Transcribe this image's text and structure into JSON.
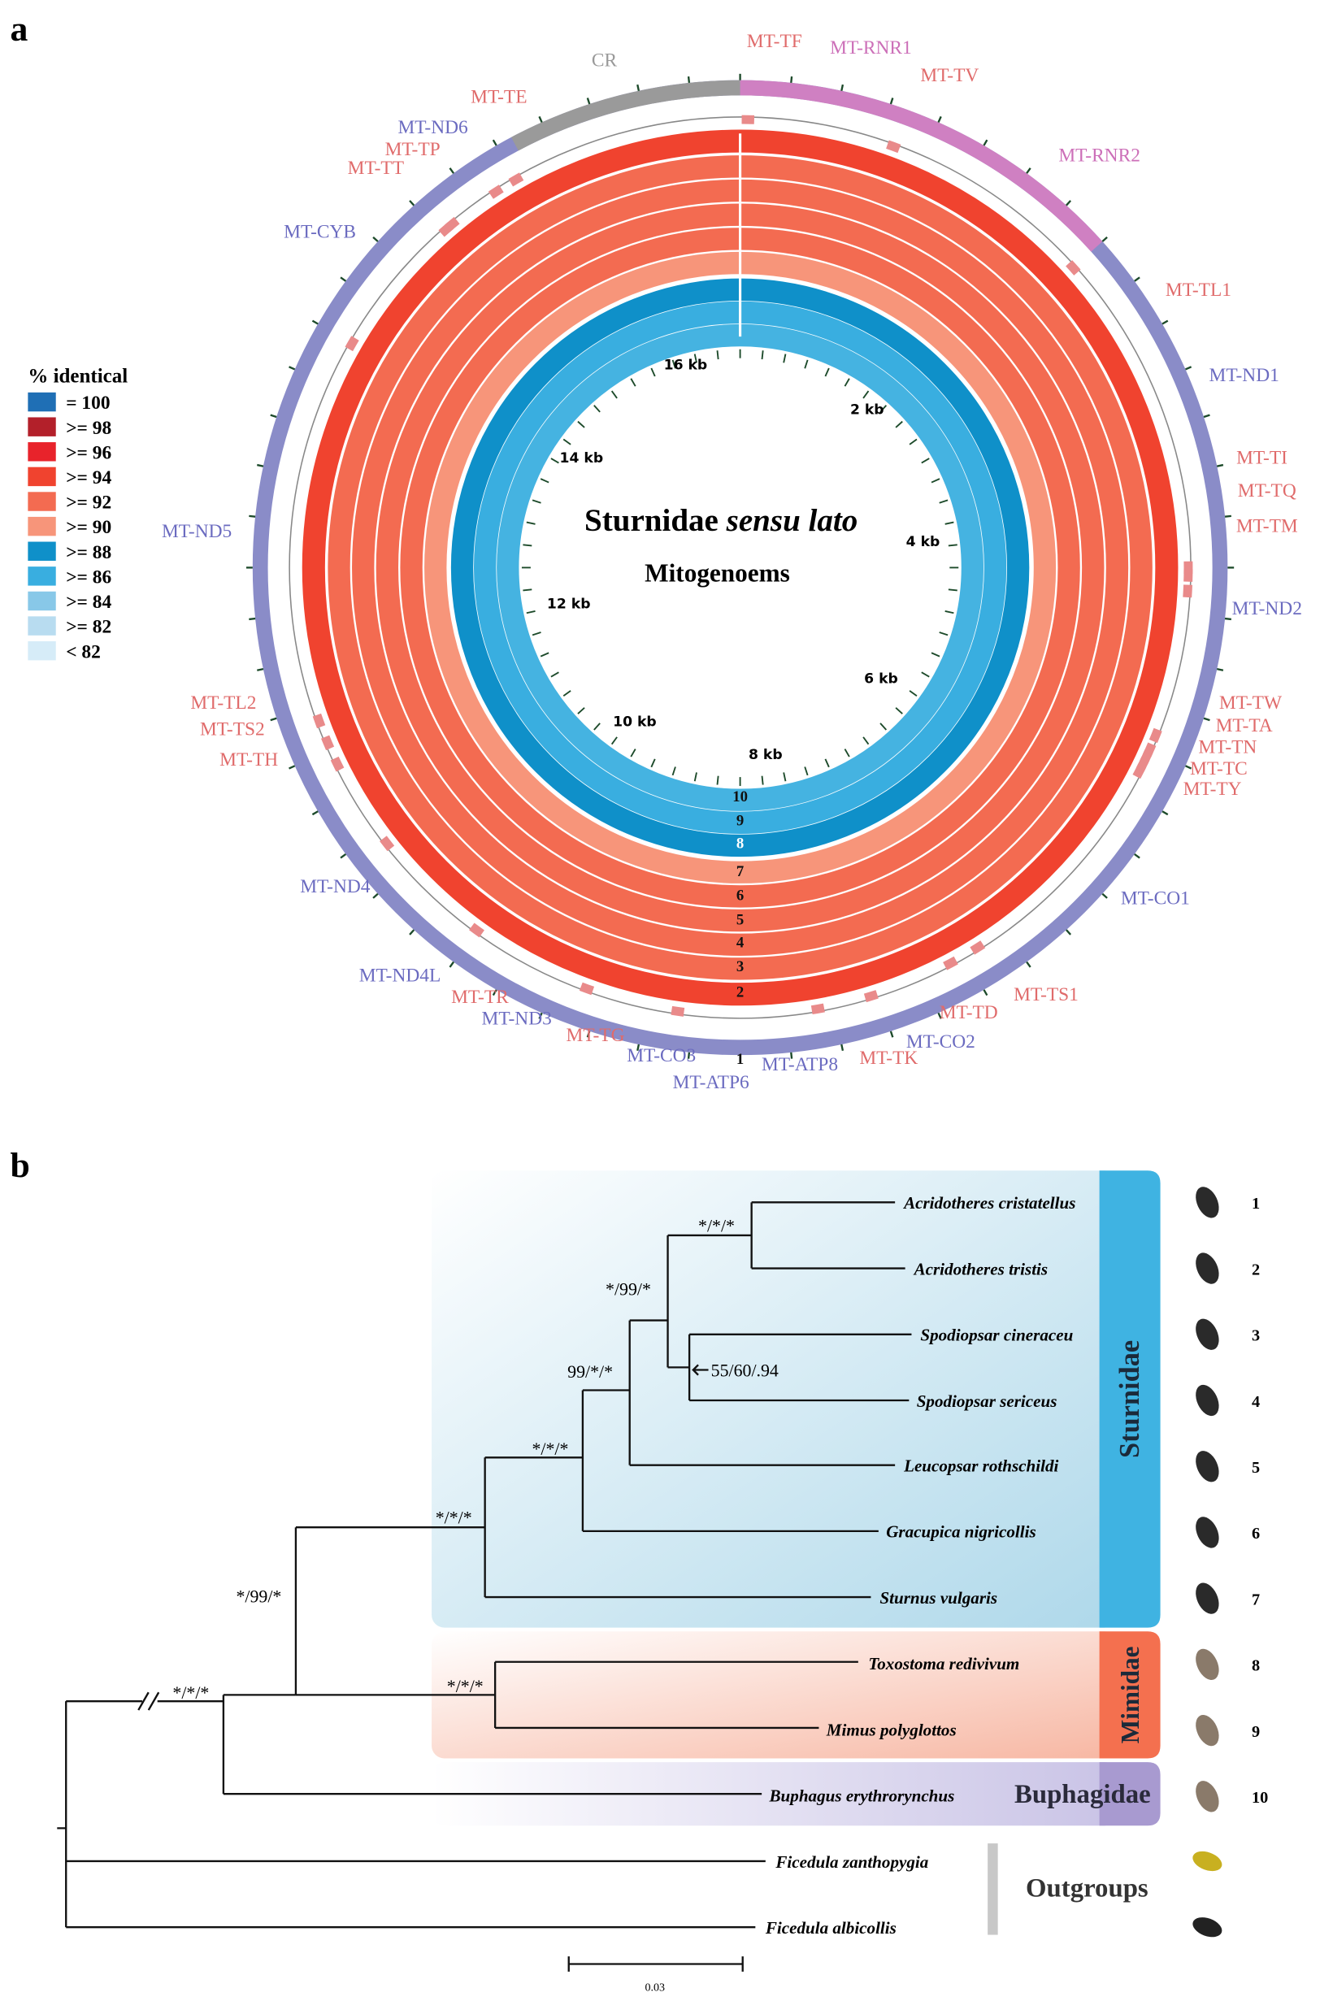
{
  "panel_a": {
    "label": "a",
    "legend": {
      "title": "% identical",
      "items": [
        {
          "label": "= 100",
          "color": "#1f6fb5"
        },
        {
          "label": ">= 98",
          "color": "#b3202a"
        },
        {
          "label": ">= 96",
          "color": "#e8232b"
        },
        {
          "label": ">= 94",
          "color": "#f0432f"
        },
        {
          "label": ">= 92",
          "color": "#f36b51"
        },
        {
          "label": ">= 90",
          "color": "#f7957a"
        },
        {
          "label": ">= 88",
          "color": "#0f90c9"
        },
        {
          "label": ">= 86",
          "color": "#39aee0"
        },
        {
          "label": ">= 84",
          "color": "#88c8e8"
        },
        {
          "label": ">= 82",
          "color": "#b8dcf0"
        },
        {
          "label": "< 82",
          "color": "#d6ecf8"
        }
      ]
    },
    "center_title": {
      "main": "Sturnidae",
      "italic": "sensu lato"
    },
    "center_subtitle": "Mitogenoems",
    "kb_labels": [
      "2 kb",
      "4 kb",
      "6 kb",
      "8 kb",
      "10 kb",
      "12 kb",
      "14 kb",
      "16 kb"
    ],
    "rings": [
      {
        "label": "1",
        "color": "#8a8cc8"
      },
      {
        "label": "2",
        "color": "#f0432f"
      },
      {
        "label": "3",
        "color": "#f36b51"
      },
      {
        "label": "4",
        "color": "#f36b51"
      },
      {
        "label": "5",
        "color": "#f36b51"
      },
      {
        "label": "6",
        "color": "#f36b51"
      },
      {
        "label": "7",
        "color": "#f7957a"
      },
      {
        "label": "8",
        "color": "#0f90c9"
      },
      {
        "label": "9",
        "color": "#39aee0"
      },
      {
        "label": "10",
        "color": "#45b3e1"
      }
    ],
    "genes": [
      {
        "name": "CR",
        "color": "#999999"
      },
      {
        "name": "MT-TF",
        "color": "#e06b6b"
      },
      {
        "name": "MT-RNR1",
        "color": "#cc6fb8"
      },
      {
        "name": "MT-TV",
        "color": "#e06b6b"
      },
      {
        "name": "MT-RNR2",
        "color": "#cc6fb8"
      },
      {
        "name": "MT-TL1",
        "color": "#e06b6b"
      },
      {
        "name": "MT-ND1",
        "color": "#6b6bc0"
      },
      {
        "name": "MT-TI",
        "color": "#e06b6b"
      },
      {
        "name": "MT-TQ",
        "color": "#e06b6b"
      },
      {
        "name": "MT-TM",
        "color": "#e06b6b"
      },
      {
        "name": "MT-ND2",
        "color": "#6b6bc0"
      },
      {
        "name": "MT-TW",
        "color": "#e06b6b"
      },
      {
        "name": "MT-TA",
        "color": "#e06b6b"
      },
      {
        "name": "MT-TN",
        "color": "#e06b6b"
      },
      {
        "name": "MT-TC",
        "color": "#e06b6b"
      },
      {
        "name": "MT-TY",
        "color": "#e06b6b"
      },
      {
        "name": "MT-CO1",
        "color": "#6b6bc0"
      },
      {
        "name": "MT-TS1",
        "color": "#e06b6b"
      },
      {
        "name": "MT-TD",
        "color": "#e06b6b"
      },
      {
        "name": "MT-CO2",
        "color": "#6b6bc0"
      },
      {
        "name": "MT-TK",
        "color": "#e06b6b"
      },
      {
        "name": "MT-ATP8",
        "color": "#6b6bc0"
      },
      {
        "name": "MT-ATP6",
        "color": "#6b6bc0"
      },
      {
        "name": "MT-CO3",
        "color": "#6b6bc0"
      },
      {
        "name": "MT-TG",
        "color": "#e06b6b"
      },
      {
        "name": "MT-ND3",
        "color": "#6b6bc0"
      },
      {
        "name": "MT-TR",
        "color": "#e06b6b"
      },
      {
        "name": "MT-ND4L",
        "color": "#6b6bc0"
      },
      {
        "name": "MT-ND4",
        "color": "#6b6bc0"
      },
      {
        "name": "MT-TH",
        "color": "#e06b6b"
      },
      {
        "name": "MT-TS2",
        "color": "#e06b6b"
      },
      {
        "name": "MT-TL2",
        "color": "#e06b6b"
      },
      {
        "name": "MT-ND5",
        "color": "#6b6bc0"
      },
      {
        "name": "MT-CYB",
        "color": "#6b6bc0"
      },
      {
        "name": "MT-TT",
        "color": "#e06b6b"
      },
      {
        "name": "MT-TP",
        "color": "#e06b6b"
      },
      {
        "name": "MT-ND6",
        "color": "#6b6bc0"
      },
      {
        "name": "MT-TE",
        "color": "#e06b6b"
      }
    ]
  },
  "panel_b": {
    "label": "b",
    "taxa": [
      "Acridotheres cristatellus",
      "Acridotheres tristis",
      "Spodiopsar cineraceu",
      "Spodiopsar sericeus",
      "Leucopsar rothschildi",
      "Gracupica nigricollis",
      "Sturnus vulgaris",
      "Toxostoma redivivum",
      "Mimus polyglottos",
      "Buphagus erythrorynchus",
      "Ficedula zanthopygia",
      "Ficedula albicollis"
    ],
    "support": [
      "*/*/*",
      "*/99/*",
      "99/*/*",
      "*/*/*",
      "*/*/*",
      "*/99/*",
      "*/*/*",
      "*/*/*",
      "55/60/.94"
    ],
    "families": [
      "Sturnidae",
      "Mimidae",
      "Buphagidae"
    ],
    "outgroups": "Outgroups",
    "image_numbers": [
      "1",
      "2",
      "3",
      "4",
      "5",
      "6",
      "7",
      "8",
      "9",
      "10"
    ],
    "scale": "0.03"
  }
}
